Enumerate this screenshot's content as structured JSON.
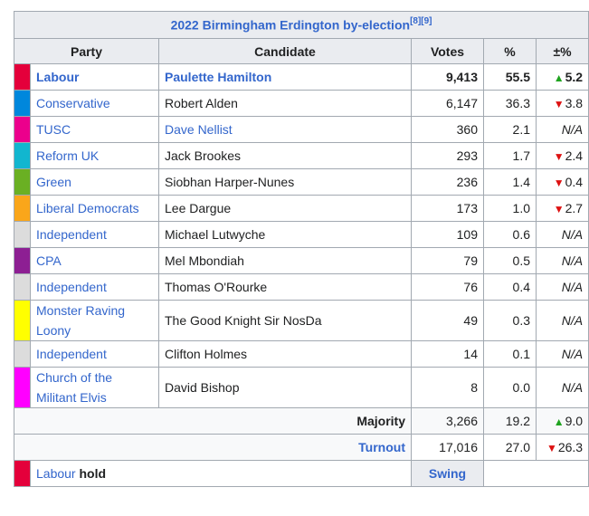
{
  "title": "2022 Birmingham Erdington by-election",
  "title_refs": "[8][9]",
  "columns": [
    "Party",
    "Candidate",
    "Votes",
    "%",
    "±%"
  ],
  "rows": [
    {
      "color": "#e4003b",
      "party": "Labour",
      "candidate": "Paulette Hamilton",
      "votes": "9,413",
      "pct": "55.5",
      "change_dir": "up",
      "change": "5.2",
      "winner": true,
      "candidate_link": true
    },
    {
      "color": "#0087dc",
      "party": "Conservative",
      "candidate": "Robert Alden",
      "votes": "6,147",
      "pct": "36.3",
      "change_dir": "down",
      "change": "3.8"
    },
    {
      "color": "#ec008c",
      "party": "TUSC",
      "candidate": "Dave Nellist",
      "votes": "360",
      "pct": "2.1",
      "change_dir": "na",
      "change": "N/A",
      "candidate_link": true
    },
    {
      "color": "#12b6cf",
      "party": "Reform UK",
      "candidate": "Jack Brookes",
      "votes": "293",
      "pct": "1.7",
      "change_dir": "down",
      "change": "2.4"
    },
    {
      "color": "#6ab023",
      "party": "Green",
      "candidate": "Siobhan Harper-Nunes",
      "votes": "236",
      "pct": "1.4",
      "change_dir": "down",
      "change": "0.4"
    },
    {
      "color": "#faa61a",
      "party": "Liberal Democrats",
      "candidate": "Lee Dargue",
      "votes": "173",
      "pct": "1.0",
      "change_dir": "down",
      "change": "2.7"
    },
    {
      "color": "#dcdcdc",
      "party": "Independent",
      "candidate": "Michael Lutwyche",
      "votes": "109",
      "pct": "0.6",
      "change_dir": "na",
      "change": "N/A"
    },
    {
      "color": "#8d1f93",
      "party": "CPA",
      "candidate": "Mel Mbondiah",
      "votes": "79",
      "pct": "0.5",
      "change_dir": "na",
      "change": "N/A"
    },
    {
      "color": "#dcdcdc",
      "party": "Independent",
      "candidate": "Thomas O'Rourke",
      "votes": "76",
      "pct": "0.4",
      "change_dir": "na",
      "change": "N/A"
    },
    {
      "color": "#ffff00",
      "party": "Monster Raving Loony",
      "candidate": "The Good Knight Sir NosDa",
      "votes": "49",
      "pct": "0.3",
      "change_dir": "na",
      "change": "N/A",
      "tall": true
    },
    {
      "color": "#dcdcdc",
      "party": "Independent",
      "candidate": "Clifton Holmes",
      "votes": "14",
      "pct": "0.1",
      "change_dir": "na",
      "change": "N/A"
    },
    {
      "color": "#ff00ff",
      "party": "Church of the Militant Elvis",
      "candidate": "David Bishop",
      "votes": "8",
      "pct": "0.0",
      "change_dir": "na",
      "change": "N/A",
      "tall": true
    }
  ],
  "majority": {
    "label": "Majority",
    "votes": "3,266",
    "pct": "19.2",
    "change_dir": "up",
    "change": "9.0"
  },
  "turnout": {
    "label": "Turnout",
    "votes": "17,016",
    "pct": "27.0",
    "change_dir": "down",
    "change": "26.3"
  },
  "hold": {
    "color": "#e4003b",
    "party": "Labour",
    "word": "hold",
    "swing_label": "Swing"
  }
}
